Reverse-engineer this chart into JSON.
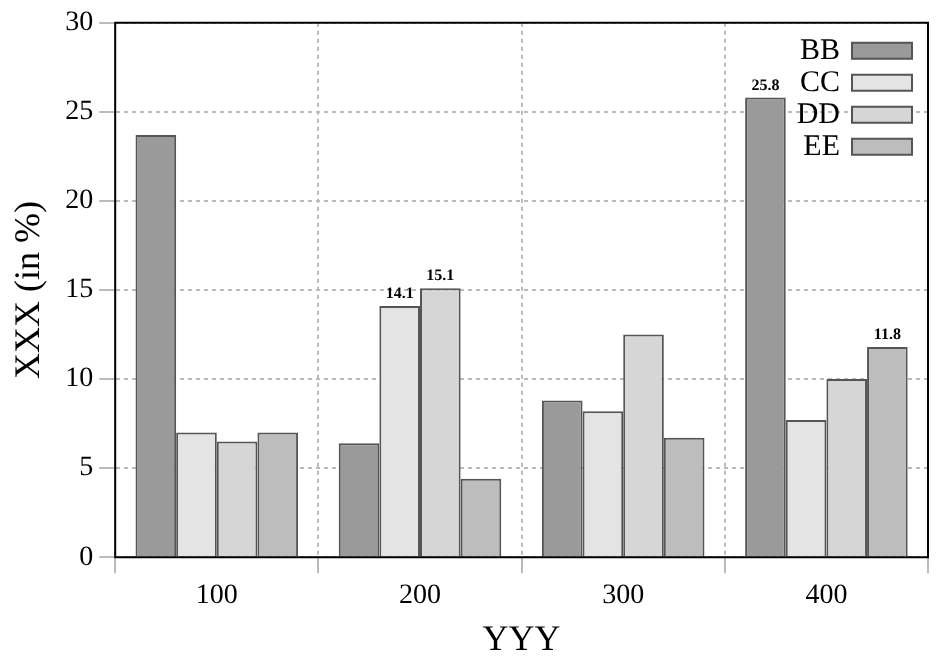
{
  "chart_data": {
    "type": "bar",
    "xlabel": "YYY",
    "ylabel": "XXX (in %)",
    "categories": [
      "100",
      "200",
      "300",
      "400"
    ],
    "series": [
      {
        "name": "BB",
        "color": "#9a9a9a",
        "values": [
          23.7,
          6.4,
          8.8,
          25.8
        ],
        "value_labels": [
          null,
          null,
          null,
          "25.8"
        ]
      },
      {
        "name": "CC",
        "color": "#e4e4e4",
        "values": [
          7.0,
          14.1,
          8.2,
          7.7
        ],
        "value_labels": [
          null,
          "14.1",
          null,
          null
        ]
      },
      {
        "name": "DD",
        "color": "#d6d6d6",
        "values": [
          6.5,
          15.1,
          12.5,
          10.0
        ],
        "value_labels": [
          null,
          "15.1",
          null,
          null
        ]
      },
      {
        "name": "EE",
        "color": "#bdbdbd",
        "values": [
          7.0,
          4.4,
          6.7,
          11.8
        ],
        "value_labels": [
          null,
          null,
          null,
          "11.8"
        ]
      }
    ],
    "ylim": [
      0,
      30
    ],
    "yticks": [
      0,
      5,
      10,
      15,
      20,
      25,
      30
    ],
    "grid": true,
    "legend": "top right"
  }
}
